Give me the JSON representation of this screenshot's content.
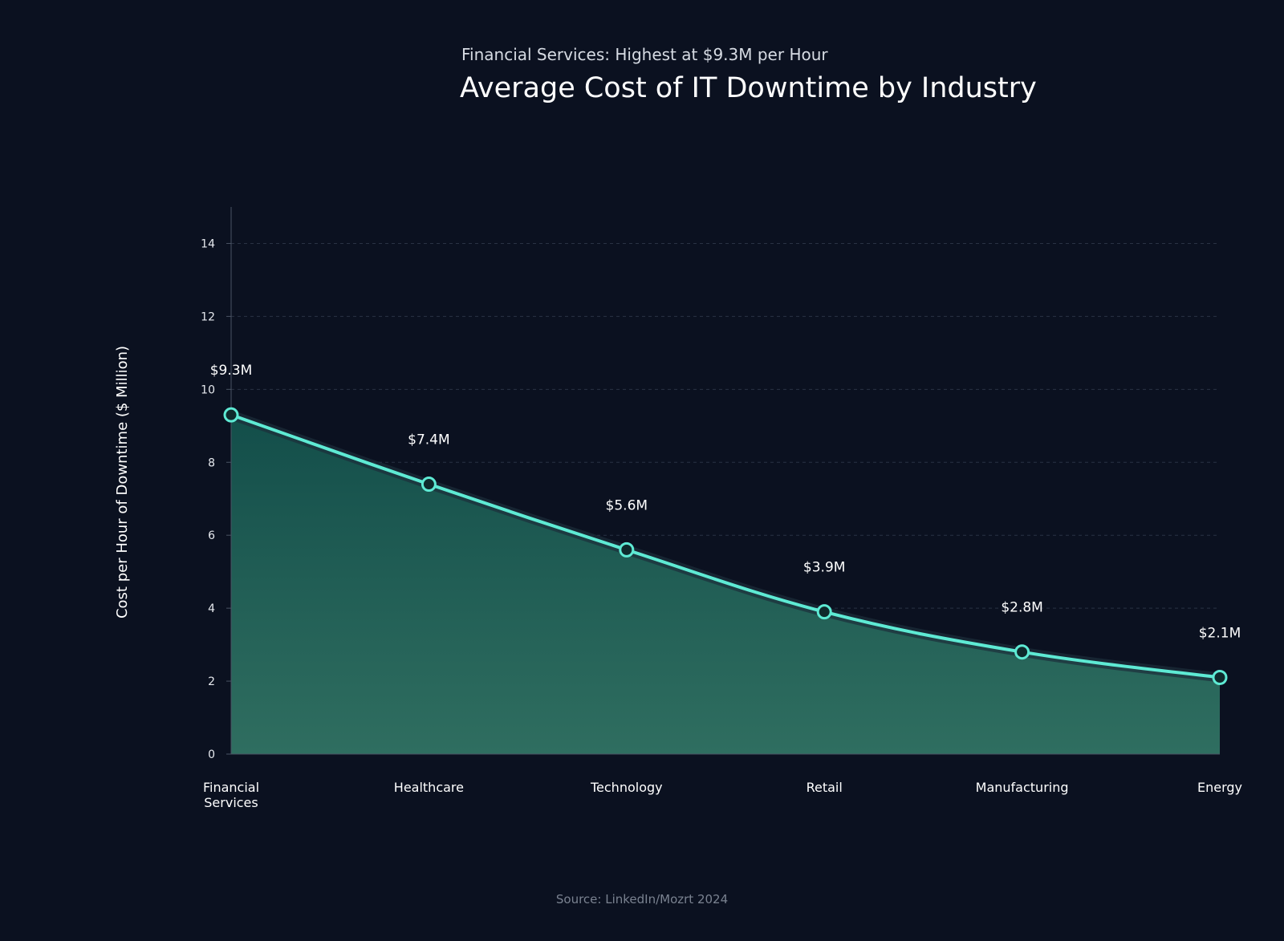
{
  "chart_data": {
    "type": "area",
    "subtitle": "Financial Services: Highest at $9.3M per Hour",
    "title": "Average Cost of IT Downtime by Industry",
    "xlabel": "",
    "ylabel": "Cost per Hour of Downtime ($ Million)",
    "categories": [
      "Financial Services",
      "Healthcare",
      "Technology",
      "Retail",
      "Manufacturing",
      "Energy"
    ],
    "values": [
      9.3,
      7.4,
      5.6,
      3.9,
      2.8,
      2.1
    ],
    "data_labels": [
      "$9.3M",
      "$7.4M",
      "$5.6M",
      "$3.9M",
      "$2.8M",
      "$2.1M"
    ],
    "ylim": [
      0,
      15
    ],
    "yticks": [
      0,
      2,
      4,
      6,
      8,
      10,
      12,
      14
    ],
    "grid": true,
    "source": "Source: LinkedIn/Mozrt 2024",
    "colors": {
      "background": "#0b1120",
      "line": "#5eead4",
      "area_top": "#134e4a",
      "area_bottom": "#2f6e60",
      "grid": "#2a3344",
      "axis": "#4a5363"
    }
  }
}
